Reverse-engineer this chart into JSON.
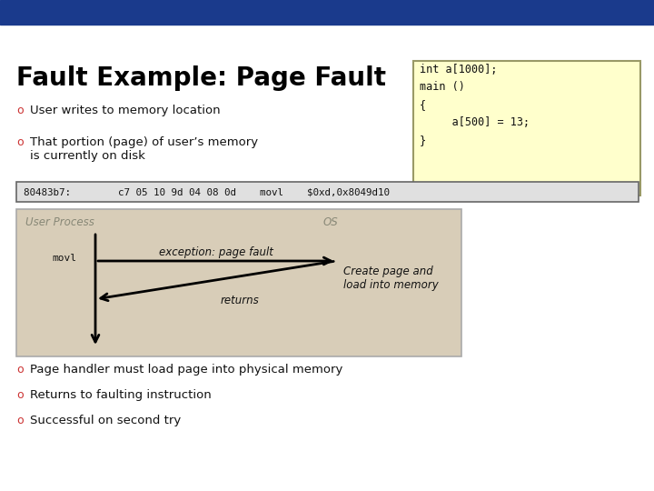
{
  "title": "Fault Example: Page Fault",
  "title_fontsize": 20,
  "title_color": "#000000",
  "bg_color": "#ffffff",
  "top_bar_color": "#1a3a8c",
  "bullet_color": "#cc3333",
  "bullet_items_top": [
    "User writes to memory location",
    "That portion (page) of user’s memory\nis currently on disk"
  ],
  "bullet_items_bottom": [
    "Page handler must load page into physical memory",
    "Returns to faulting instruction",
    "Successful on second try"
  ],
  "code_box_color": "#ffffcc",
  "code_box_border": "#999966",
  "code_text": "int a[1000];\nmain ()\n{\n     a[500] = 13;\n}",
  "asm_bar_color": "#e0e0e0",
  "asm_bar_border": "#666666",
  "asm_text": "80483b7:        c7 05 10 9d 04 08 0d    movl    $0xd,0x8049d10",
  "diagram_bg": "#d8cdb8",
  "diagram_border": "#aaaaaa",
  "up_label": "User Process",
  "os_label": "OS",
  "movl_label": "movl",
  "exception_label": "exception: page fault",
  "returns_label": "returns",
  "create_label": "Create page and\nload into memory"
}
